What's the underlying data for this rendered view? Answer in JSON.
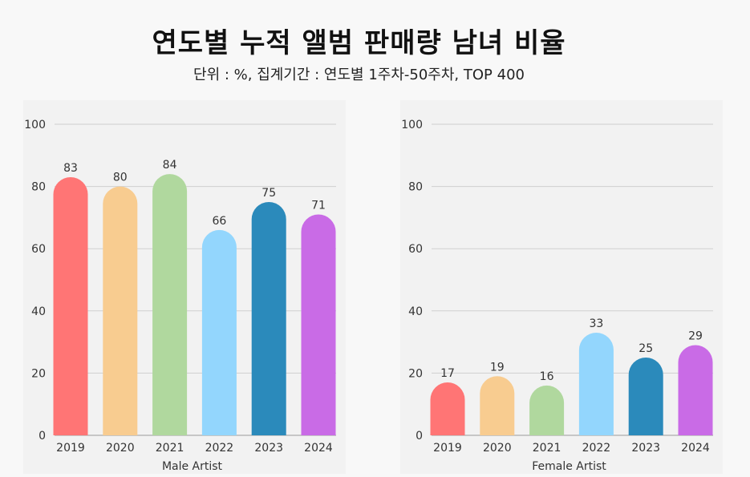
{
  "header": {
    "title": "연도별 누적 앨범 판매량 남녀 비율",
    "subtitle": "단위 : %, 집계기간 : 연도별 1주차-50주차, TOP 400"
  },
  "colors": [
    "#ff7575",
    "#f8cc90",
    "#b0d89e",
    "#93d6fd",
    "#2b8abb",
    "#c96be6"
  ],
  "chart_data": [
    {
      "type": "bar",
      "categories": [
        "2019",
        "2020",
        "2021",
        "2022",
        "2023",
        "2024"
      ],
      "values": [
        83,
        80,
        84,
        66,
        75,
        71
      ],
      "xlabel": "Male Artist",
      "ylim": [
        0,
        100
      ],
      "yticks": [
        0,
        20,
        40,
        60,
        80,
        100
      ],
      "grid": true
    },
    {
      "type": "bar",
      "categories": [
        "2019",
        "2020",
        "2021",
        "2022",
        "2023",
        "2024"
      ],
      "values": [
        17,
        19,
        16,
        33,
        25,
        29
      ],
      "xlabel": "Female Artist",
      "ylim": [
        0,
        100
      ],
      "yticks": [
        0,
        20,
        40,
        60,
        80,
        100
      ],
      "grid": true
    }
  ]
}
